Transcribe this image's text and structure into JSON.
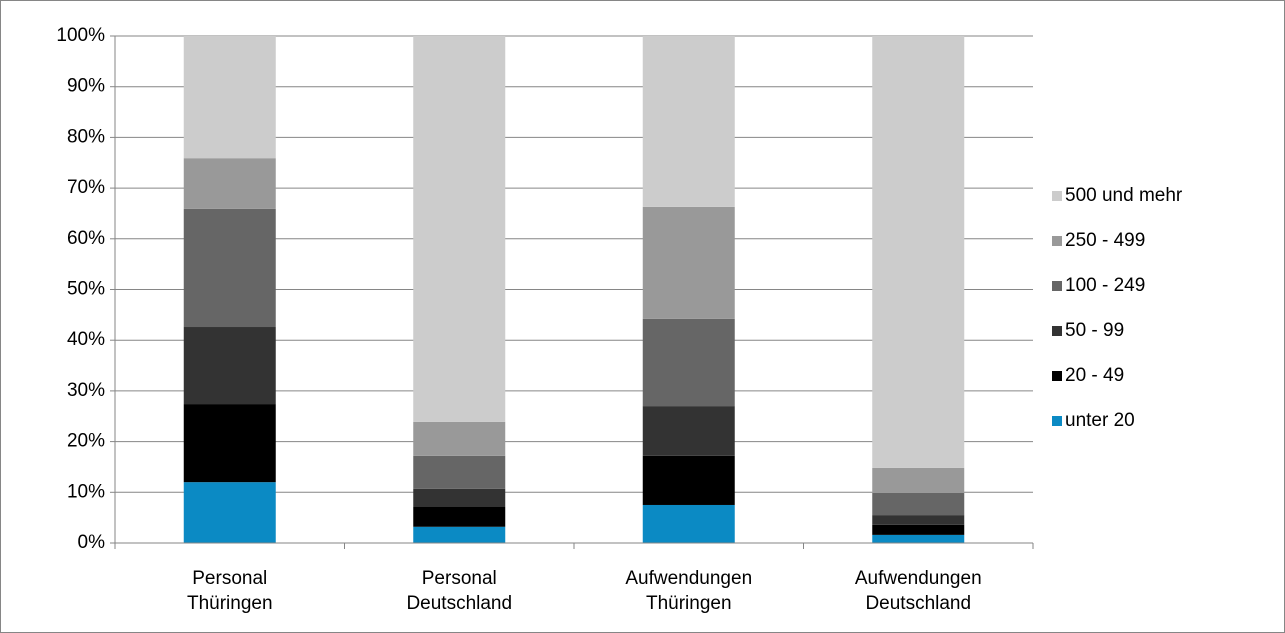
{
  "chart_data": {
    "type": "stacked_bar",
    "categories": [
      "Personal Thüringen",
      "Personal Deutschland",
      "Aufwendungen Thüringen",
      "Aufwendungen Deutschland"
    ],
    "series": [
      {
        "name": "unter 20",
        "color": "#0b8ac4",
        "values": [
          12.0,
          3.2,
          7.5,
          1.6
        ]
      },
      {
        "name": "20 - 49",
        "color": "#000000",
        "values": [
          15.4,
          3.9,
          9.7,
          2.0
        ]
      },
      {
        "name": "50 - 99",
        "color": "#333333",
        "values": [
          15.2,
          3.6,
          9.8,
          1.9
        ]
      },
      {
        "name": "100 - 249",
        "color": "#666666",
        "values": [
          23.3,
          6.5,
          17.2,
          4.4
        ]
      },
      {
        "name": "250 - 499",
        "color": "#999999",
        "values": [
          10.0,
          6.7,
          22.1,
          4.9
        ]
      },
      {
        "name": "500 und mehr",
        "color": "#cccccc",
        "values": [
          24.1,
          76.1,
          33.7,
          85.2
        ]
      }
    ],
    "ylim": [
      0,
      100
    ],
    "yticks": [
      {
        "value": 0,
        "label": "0%"
      },
      {
        "value": 10,
        "label": "10%"
      },
      {
        "value": 20,
        "label": "20%"
      },
      {
        "value": 30,
        "label": "30%"
      },
      {
        "value": 40,
        "label": "40%"
      },
      {
        "value": 50,
        "label": "50%"
      },
      {
        "value": 60,
        "label": "60%"
      },
      {
        "value": 70,
        "label": "70%"
      },
      {
        "value": 80,
        "label": "80%"
      },
      {
        "value": 90,
        "label": "90%"
      },
      {
        "value": 100,
        "label": "100%"
      }
    ],
    "grid": true,
    "legend": "right"
  }
}
